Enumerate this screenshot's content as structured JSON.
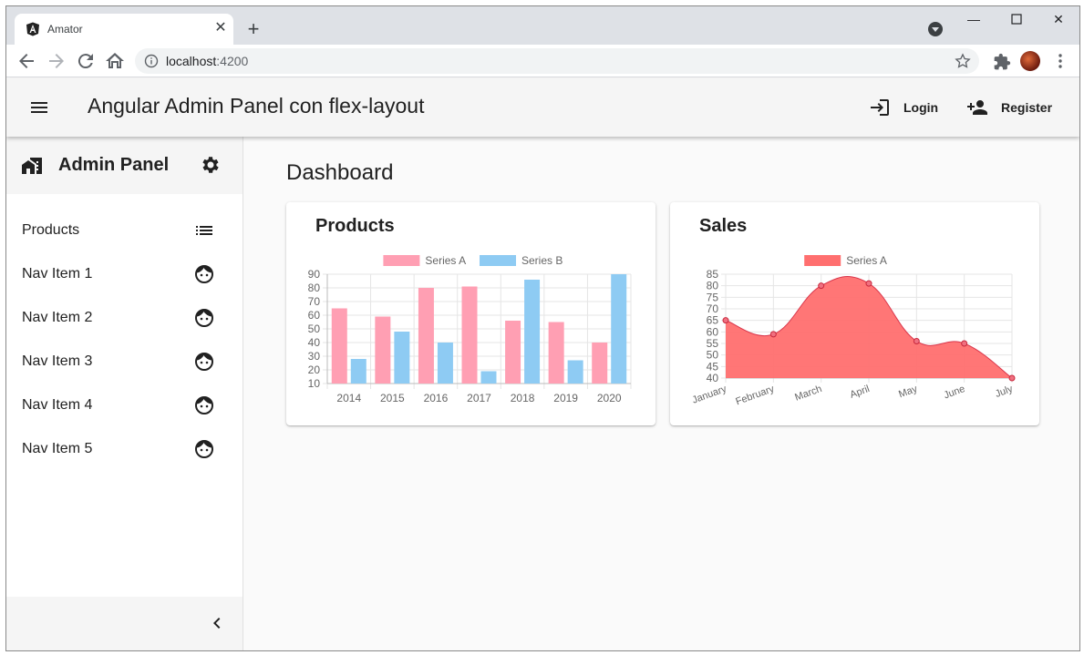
{
  "browser": {
    "tab_title": "Amator",
    "url_host": "localhost",
    "url_port": ":4200"
  },
  "app": {
    "title": "Angular Admin Panel con flex-layout",
    "login_label": "Login",
    "register_label": "Register"
  },
  "sidebar": {
    "title": "Admin Panel",
    "items": [
      {
        "label": "Products",
        "icon": "list-icon"
      },
      {
        "label": "Nav Item 1",
        "icon": "face-icon"
      },
      {
        "label": "Nav Item 2",
        "icon": "face-icon"
      },
      {
        "label": "Nav Item 3",
        "icon": "face-icon"
      },
      {
        "label": "Nav Item 4",
        "icon": "face-icon"
      },
      {
        "label": "Nav Item 5",
        "icon": "face-icon"
      }
    ]
  },
  "dashboard": {
    "title": "Dashboard",
    "products_card_title": "Products",
    "sales_card_title": "Sales"
  },
  "chart_data": [
    {
      "type": "bar",
      "title": "Products",
      "categories": [
        "2014",
        "2015",
        "2016",
        "2017",
        "2018",
        "2019",
        "2020"
      ],
      "series": [
        {
          "name": "Series A",
          "values": [
            65,
            59,
            80,
            81,
            56,
            55,
            40
          ],
          "color": "#ff9fb3"
        },
        {
          "name": "Series B",
          "values": [
            28,
            48,
            40,
            19,
            86,
            27,
            90
          ],
          "color": "#8ecbf3"
        }
      ],
      "ylim": [
        10,
        90
      ],
      "yticks": [
        "10",
        "20",
        "30",
        "40",
        "50",
        "60",
        "70",
        "80",
        "90"
      ],
      "grid": true,
      "legend": "top"
    },
    {
      "type": "area",
      "title": "Sales",
      "categories": [
        "January",
        "February",
        "March",
        "April",
        "May",
        "June",
        "July"
      ],
      "series": [
        {
          "name": "Series A",
          "values": [
            65,
            59,
            80,
            81,
            56,
            55,
            40
          ],
          "color": "#ff6f6f"
        }
      ],
      "ylim": [
        40,
        85
      ],
      "yticks": [
        "40",
        "45",
        "50",
        "55",
        "60",
        "65",
        "70",
        "75",
        "80",
        "85"
      ],
      "grid": true,
      "legend": "top"
    }
  ]
}
